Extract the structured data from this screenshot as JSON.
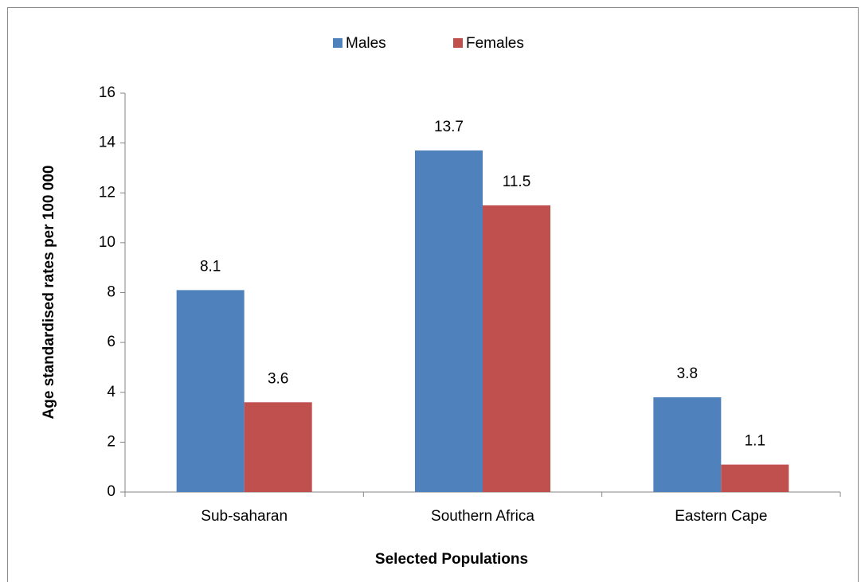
{
  "chart_data": {
    "type": "bar",
    "xlabel": "Selected Populations",
    "ylabel": "Age standardised rates per 100 000",
    "categories": [
      "Sub-saharan",
      "Southern Africa",
      "Eastern Cape"
    ],
    "series": [
      {
        "name": "Males",
        "color": "#4f81bd",
        "values": [
          8.1,
          13.7,
          3.8
        ]
      },
      {
        "name": "Females",
        "color": "#c0504d",
        "values": [
          3.6,
          11.5,
          1.1
        ]
      }
    ],
    "ylim": [
      0,
      16
    ],
    "yticks": [
      0,
      2,
      4,
      6,
      8,
      10,
      12,
      14,
      16
    ],
    "grid": false,
    "legend": "top",
    "data_labels": true
  }
}
